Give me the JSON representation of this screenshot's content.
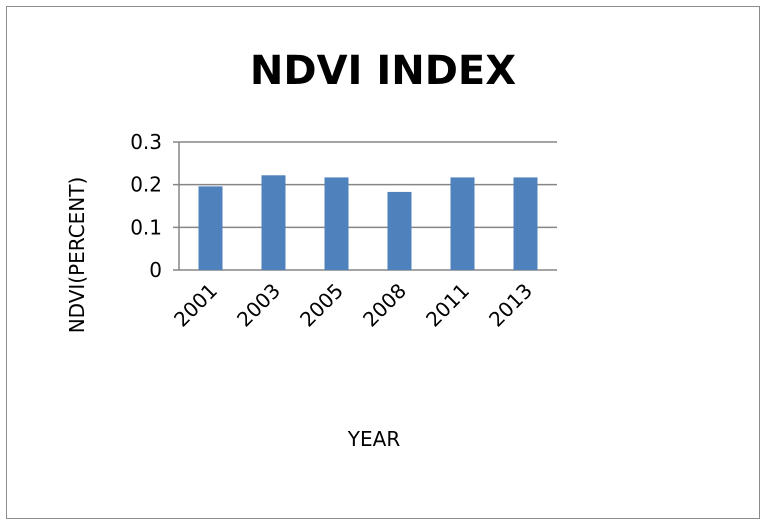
{
  "chart_data": {
    "type": "bar",
    "title": "NDVI INDEX",
    "xlabel": "YEAR",
    "ylabel": "NDVI(PERCENT)",
    "categories": [
      "2001",
      "2003",
      "2005",
      "2008",
      "2011",
      "2013"
    ],
    "values": [
      0.196,
      0.222,
      0.217,
      0.183,
      0.217,
      0.217
    ],
    "ylim": [
      0,
      0.3
    ],
    "yticks": [
      "0",
      "0.1",
      "0.2",
      "0.3"
    ],
    "ytick_values": [
      0,
      0.1,
      0.2,
      0.3
    ],
    "grid": true,
    "bar_color": "#4f81bd",
    "grid_color": "#868686",
    "legend": "none"
  }
}
